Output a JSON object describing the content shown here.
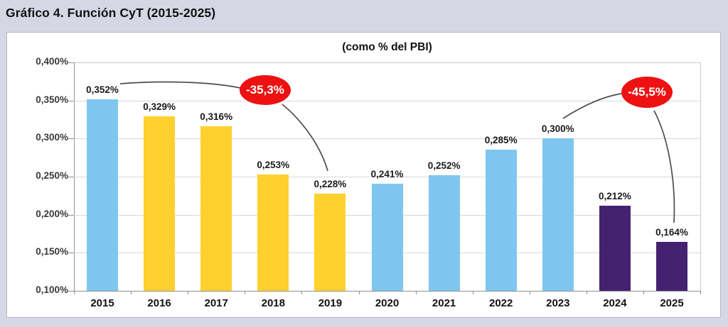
{
  "page": {
    "title": "Gráfico 4. Función CyT (2015-2025)"
  },
  "chart_data": {
    "type": "bar",
    "title": "(como % del PBI)",
    "categories": [
      "2015",
      "2016",
      "2017",
      "2018",
      "2019",
      "2020",
      "2021",
      "2022",
      "2023",
      "2024",
      "2025"
    ],
    "values": [
      0.352,
      0.329,
      0.316,
      0.253,
      0.228,
      0.241,
      0.252,
      0.285,
      0.3,
      0.212,
      0.164
    ],
    "value_labels": [
      "0,352%",
      "0,329%",
      "0,316%",
      "0,253%",
      "0,228%",
      "0,241%",
      "0,252%",
      "0,285%",
      "0,300%",
      "0,212%",
      "0,164%"
    ],
    "bar_colors": [
      "#7EC6F0",
      "#FFD02E",
      "#FFD02E",
      "#FFD02E",
      "#FFD02E",
      "#7EC6F0",
      "#7EC6F0",
      "#7EC6F0",
      "#7EC6F0",
      "#45226F",
      "#45226F"
    ],
    "ylim": [
      0.1,
      0.4
    ],
    "ytick_step": 0.05,
    "ytick_labels": [
      "0,100%",
      "0,150%",
      "0,200%",
      "0,250%",
      "0,300%",
      "0,350%",
      "0,400%"
    ],
    "xlabel": "",
    "ylabel": "",
    "grid": true,
    "legend": null,
    "annotations": [
      {
        "text": "-35,3%",
        "from_year": "2015",
        "to_year": "2019",
        "fill": "#ED1111",
        "text_color": "#FFFFFF"
      },
      {
        "text": "-45,5%",
        "from_year": "2023",
        "to_year": "2025",
        "fill": "#ED1111",
        "text_color": "#FFFFFF"
      }
    ],
    "colors": {
      "background": "#d5d7e4",
      "panel": "#ffffff",
      "gridline": "#d8d8d8",
      "axis": "#8f8f8f",
      "connector_line": "#4d4d4d",
      "blue_bar": "#7EC6F0",
      "yellow_bar": "#FFD02E",
      "purple_bar": "#45226F",
      "annotation_red": "#ED1111"
    }
  }
}
